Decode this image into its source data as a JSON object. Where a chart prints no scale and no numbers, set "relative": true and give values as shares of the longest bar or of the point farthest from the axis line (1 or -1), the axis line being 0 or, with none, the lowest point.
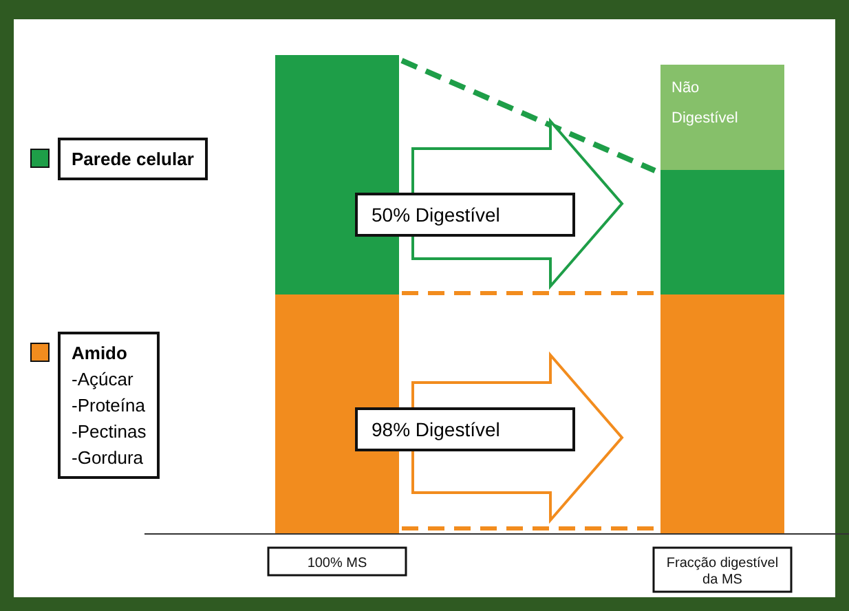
{
  "chart_data": {
    "type": "bar",
    "stacked": true,
    "relative": true,
    "categories": [
      "100% MS",
      "Fracção digestível da MS"
    ],
    "series": [
      {
        "name": "Amido\n-Açúcar\n-Proteína\n-Pectinas\n-Gordura",
        "color": "#f28c1e",
        "values": [
          0.5,
          0.5
        ]
      },
      {
        "name": "Parede celular",
        "color": "#1e9e48",
        "values": [
          0.5,
          0.26
        ]
      },
      {
        "name": "Não Digestível",
        "color": "#86c06a",
        "values": [
          null,
          0.22
        ]
      }
    ],
    "legend": "left",
    "annotations": [
      "50% Digestível",
      "98% Digestível"
    ]
  }
}
